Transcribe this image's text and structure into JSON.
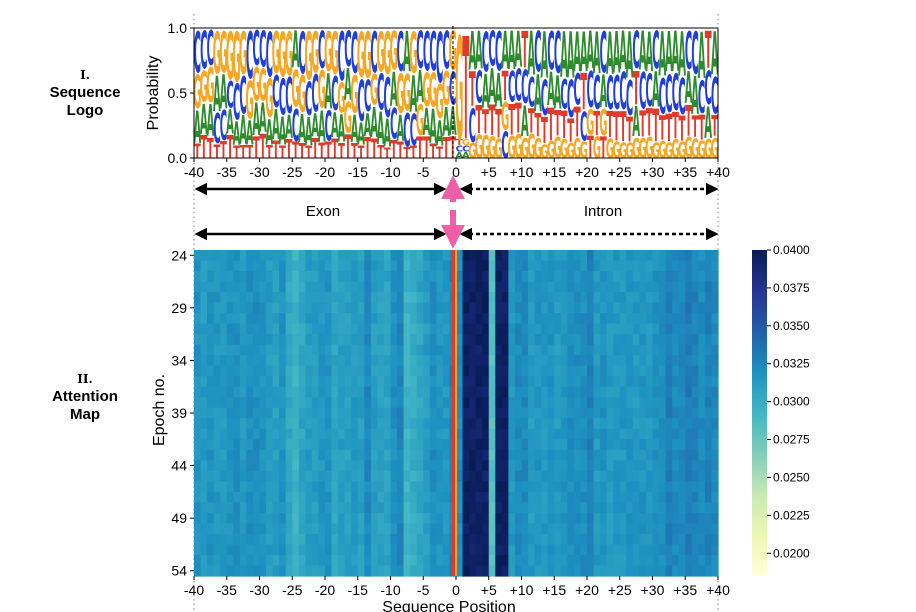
{
  "section_labels": {
    "logo_numeral": "I.",
    "logo_title_1": "Sequence",
    "logo_title_2": "Logo",
    "attn_numeral": "II.",
    "attn_title_1": "Attention",
    "attn_title_2": "Map"
  },
  "regions": {
    "left": "Exon",
    "right": "Intron"
  },
  "colors": {
    "A": "#2e8b2e",
    "C": "#1f3fd6",
    "G": "#f5a623",
    "T": "#e03a2a",
    "arrow_pink": "#ee5fa7",
    "boundary_red": "#e03a2a",
    "boundary_orange": "#f5a623"
  },
  "chart_data": [
    {
      "type": "sequence-logo",
      "ylabel": "Probability",
      "xlabel": "",
      "ylim": [
        0,
        1
      ],
      "y_ticks": [
        "0.0",
        "0.5",
        "1.0"
      ],
      "x_ticks": [
        "-40",
        "-35",
        "-30",
        "-25",
        "-20",
        "-15",
        "-10",
        "-5",
        "0",
        "+5",
        "+10",
        "+15",
        "+20",
        "+25",
        "+30",
        "+35",
        "+40"
      ],
      "positions": [
        -40,
        40
      ],
      "legend": "none",
      "grid": false
    },
    {
      "type": "heatmap",
      "xlabel": "Sequence Position",
      "ylabel": "Epoch no.",
      "x_ticks": [
        "-40",
        "-35",
        "-30",
        "-25",
        "-20",
        "-15",
        "-10",
        "-5",
        "0",
        "+5",
        "+10",
        "+15",
        "+20",
        "+25",
        "+30",
        "+35",
        "+40"
      ],
      "y_ticks": [
        "24",
        "29",
        "34",
        "39",
        "44",
        "49",
        "54"
      ],
      "epochs": [
        24,
        54
      ],
      "positions": [
        -40,
        40
      ],
      "colorbar": {
        "ticks": [
          "0.0400",
          "0.0375",
          "0.0350",
          "0.0325",
          "0.0300",
          "0.0275",
          "0.0250",
          "0.0225",
          "0.0200"
        ],
        "range": [
          0.0185,
          0.04
        ],
        "colormap": "YlGnBu"
      },
      "column_means": {
        "exon_typical": 0.0318,
        "exon_light_bands": [
          -25,
          -18,
          -12,
          -7
        ],
        "boundary_blank": 0,
        "intron_dark_positions": [
          1,
          2,
          3,
          4,
          6,
          7
        ],
        "intron_dark_value": 0.0395,
        "intron_light_position": 5,
        "intron_light_value": 0.0282,
        "intron_typical": 0.032
      },
      "legend": "colorbar right",
      "grid": false
    }
  ]
}
